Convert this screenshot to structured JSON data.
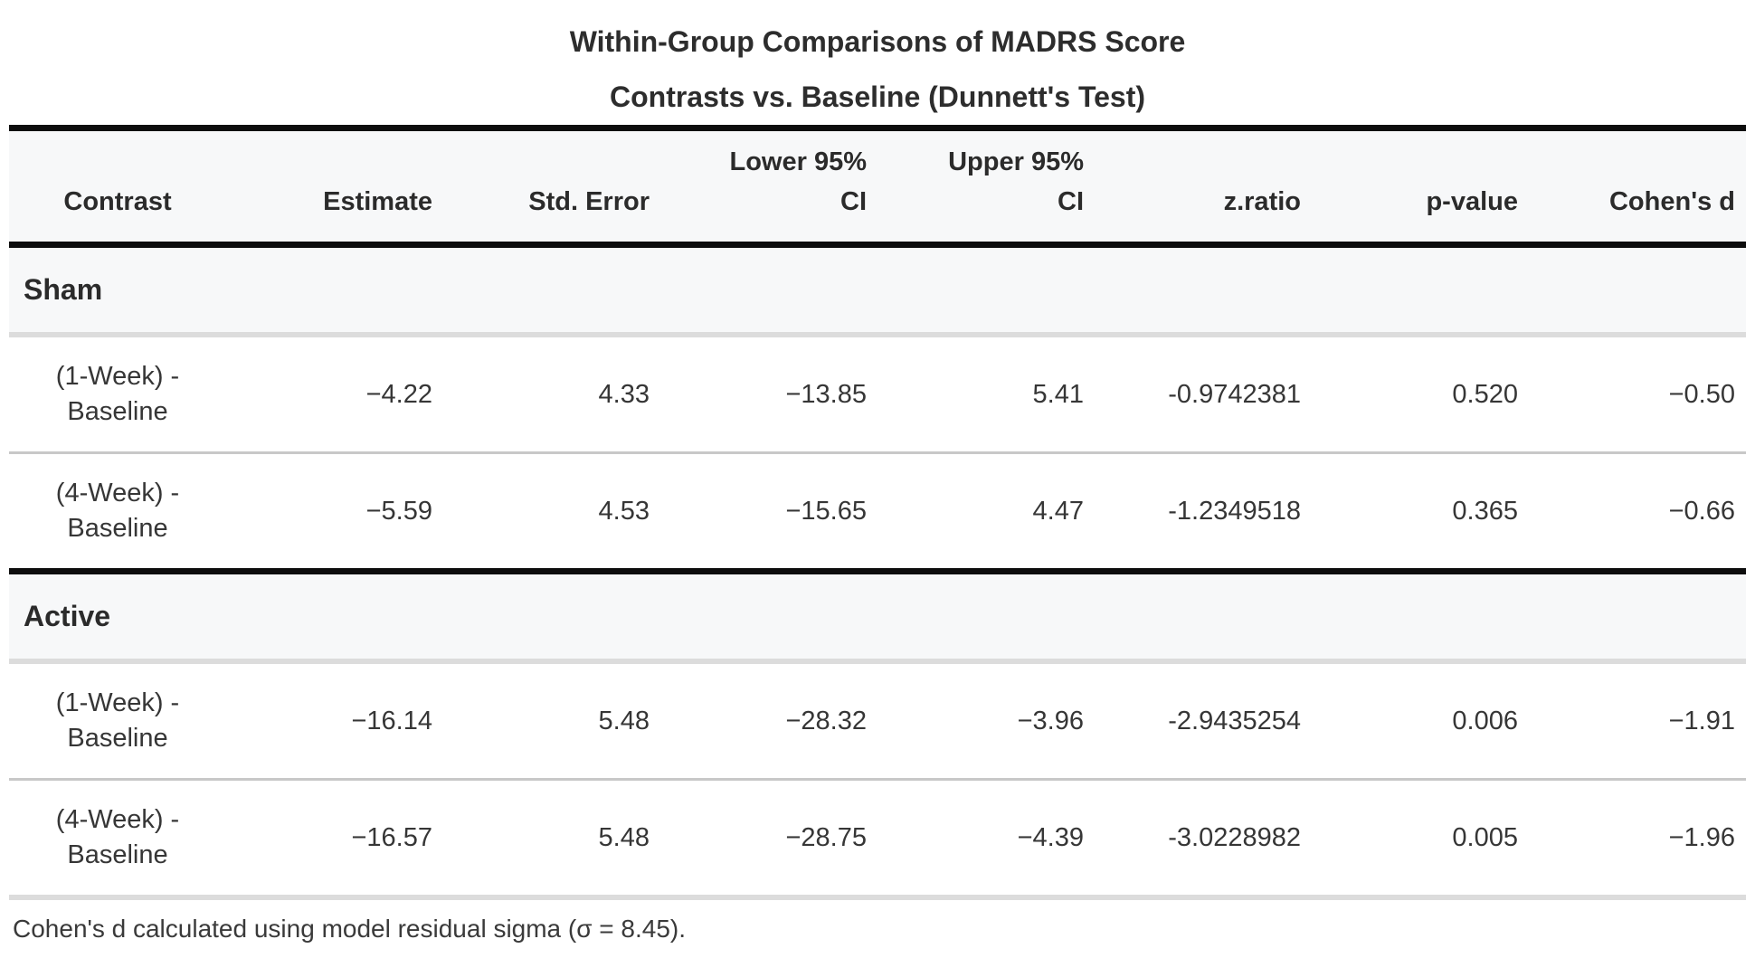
{
  "display": {
    "title": "Within-Group Comparisons of MADRS Score",
    "subtitle": "Contrasts vs. Baseline (Dunnett's Test)",
    "columns": [
      "Contrast",
      "Estimate",
      "Std. Error",
      "Lower 95%\nCI",
      "Upper 95%\nCI",
      "z.ratio",
      "p-value",
      "Cohen's d"
    ],
    "groups": [
      {
        "label": "Sham",
        "rows": [
          {
            "contrast": "(1-Week) -\nBaseline",
            "estimate": "−4.22",
            "std_error": "4.33",
            "lower_ci": "−13.85",
            "upper_ci": "5.41",
            "z_ratio": "-0.9742381",
            "p_value": "0.520",
            "cohens_d": "−0.50"
          },
          {
            "contrast": "(4-Week) -\nBaseline",
            "estimate": "−5.59",
            "std_error": "4.53",
            "lower_ci": "−15.65",
            "upper_ci": "4.47",
            "z_ratio": "-1.2349518",
            "p_value": "0.365",
            "cohens_d": "−0.66"
          }
        ]
      },
      {
        "label": "Active",
        "rows": [
          {
            "contrast": "(1-Week) -\nBaseline",
            "estimate": "−16.14",
            "std_error": "5.48",
            "lower_ci": "−28.32",
            "upper_ci": "−3.96",
            "z_ratio": "-2.9435254",
            "p_value": "0.006",
            "cohens_d": "−1.91"
          },
          {
            "contrast": "(4-Week) -\nBaseline",
            "estimate": "−16.57",
            "std_error": "5.48",
            "lower_ci": "−28.75",
            "upper_ci": "−4.39",
            "z_ratio": "-3.0228982",
            "p_value": "0.005",
            "cohens_d": "−1.96"
          }
        ]
      }
    ],
    "footnote": "Cohen's d calculated using model residual sigma (σ = 8.45)."
  },
  "colors": {
    "heavy_border": "#0d0d0d",
    "light_border": "#dcdcdc",
    "row_separator": "#c8c8c8",
    "header_background": "#f7f8f9",
    "group_row_background": "#f7f8f9",
    "text": "#363636",
    "bold_text": "#2b2b2b"
  },
  "chart_data": {
    "type": "table",
    "title": "Within-Group Comparisons of MADRS Score",
    "subtitle": "Contrasts vs. Baseline (Dunnett's Test)",
    "columns": [
      "Contrast",
      "Estimate",
      "Std. Error",
      "Lower 95% CI",
      "Upper 95% CI",
      "z.ratio",
      "p-value",
      "Cohen's d"
    ],
    "groups": [
      {
        "group": "Sham",
        "rows": [
          {
            "contrast": "(1-Week) - Baseline",
            "estimate": -4.22,
            "std_error": 4.33,
            "lower_95_ci": -13.85,
            "upper_95_ci": 5.41,
            "z_ratio": -0.9742381,
            "p_value": 0.52,
            "cohens_d": -0.5
          },
          {
            "contrast": "(4-Week) - Baseline",
            "estimate": -5.59,
            "std_error": 4.53,
            "lower_95_ci": -15.65,
            "upper_95_ci": 4.47,
            "z_ratio": -1.2349518,
            "p_value": 0.365,
            "cohens_d": -0.66
          }
        ]
      },
      {
        "group": "Active",
        "rows": [
          {
            "contrast": "(1-Week) - Baseline",
            "estimate": -16.14,
            "std_error": 5.48,
            "lower_95_ci": -28.32,
            "upper_95_ci": -3.96,
            "z_ratio": -2.9435254,
            "p_value": 0.006,
            "cohens_d": -1.91
          },
          {
            "contrast": "(4-Week) - Baseline",
            "estimate": -16.57,
            "std_error": 5.48,
            "lower_95_ci": -28.75,
            "upper_95_ci": -4.39,
            "z_ratio": -3.0228982,
            "p_value": 0.005,
            "cohens_d": -1.96
          }
        ]
      }
    ],
    "footnote": "Cohen's d calculated using model residual sigma (σ = 8.45).",
    "residual_sigma": 8.45
  }
}
